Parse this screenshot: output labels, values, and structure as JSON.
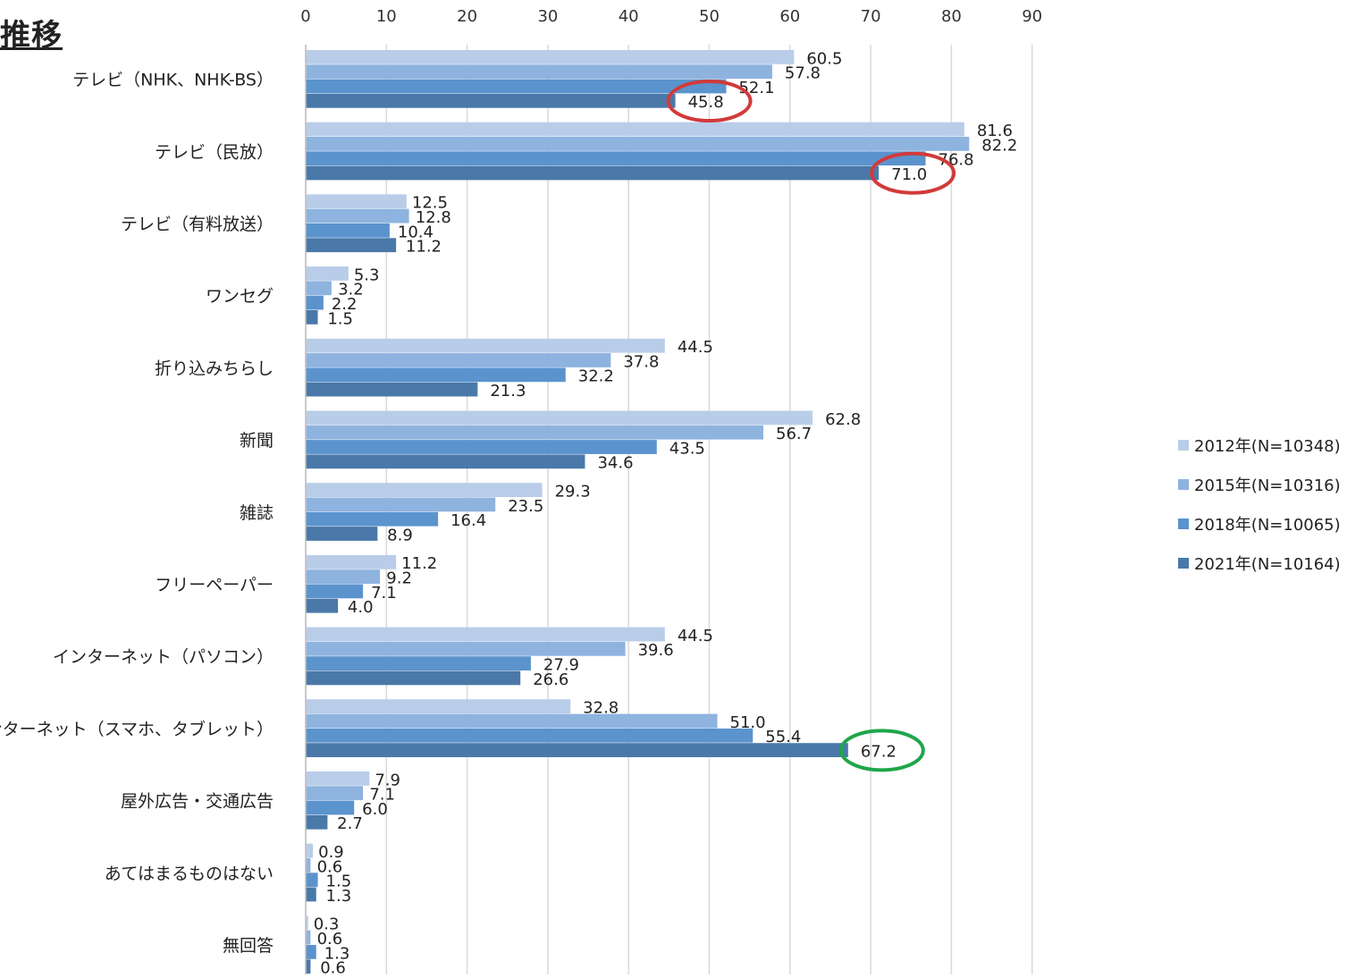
{
  "page": {
    "title_fragment": "推移"
  },
  "chart_data": {
    "type": "bar",
    "orientation": "horizontal",
    "title": "推移",
    "xlim": [
      0,
      90
    ],
    "xticks": [
      0,
      10,
      20,
      30,
      40,
      50,
      60,
      70,
      80,
      90
    ],
    "grid": true,
    "legend_position": "right",
    "categories": [
      "テレビ（NHK、NHK-BS）",
      "テレビ（民放）",
      "テレビ（有料放送）",
      "ワンセグ",
      "折り込みちらし",
      "新聞",
      "雑誌",
      "フリーペーパー",
      "インターネット（パソコン）",
      "インターネット（スマホ、タブレット）",
      "屋外広告・交通広告",
      "あてはまるものはない",
      "無回答"
    ],
    "series": [
      {
        "name": "2012年(N=10348)",
        "color": "#b9cde9",
        "values": [
          60.5,
          81.6,
          12.5,
          5.3,
          44.5,
          62.8,
          29.3,
          11.2,
          44.5,
          32.8,
          7.9,
          0.9,
          0.3
        ]
      },
      {
        "name": "2015年(N=10316)",
        "color": "#8eb3df",
        "values": [
          57.8,
          82.2,
          12.8,
          3.2,
          37.8,
          56.7,
          23.5,
          9.2,
          39.6,
          51.0,
          7.1,
          0.6,
          0.6
        ]
      },
      {
        "name": "2018年(N=10065)",
        "color": "#5b93cd",
        "values": [
          52.1,
          76.8,
          10.4,
          2.2,
          32.2,
          43.5,
          16.4,
          7.1,
          27.9,
          55.4,
          6.0,
          1.5,
          1.3
        ]
      },
      {
        "name": "2021年(N=10164)",
        "color": "#4a79a9",
        "values": [
          45.8,
          71.0,
          11.2,
          1.5,
          21.3,
          34.6,
          8.9,
          4.0,
          26.6,
          67.2,
          2.7,
          1.3,
          0.6
        ]
      }
    ],
    "highlights": [
      {
        "category_index": 0,
        "series_index": 3,
        "color": "#d23a3a"
      },
      {
        "category_index": 1,
        "series_index": 3,
        "color": "#d23a3a"
      },
      {
        "category_index": 9,
        "series_index": 3,
        "color": "#1fa64a"
      }
    ]
  }
}
